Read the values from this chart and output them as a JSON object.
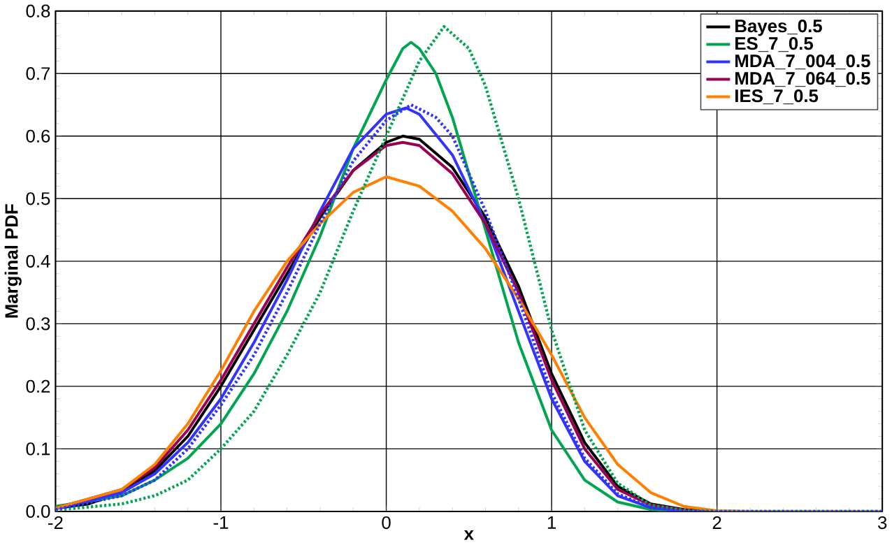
{
  "chart_data": {
    "type": "line",
    "xlabel": "x",
    "ylabel": "Marginal PDF",
    "xlim": [
      -2,
      3
    ],
    "ylim": [
      0,
      0.8
    ],
    "xticks": [
      -2,
      -1,
      0,
      1,
      2,
      3
    ],
    "yticks": [
      {
        "value": 0,
        "label": "0.0"
      },
      {
        "value": 0.1,
        "label": "0.1"
      },
      {
        "value": 0.2,
        "label": "0.2"
      },
      {
        "value": 0.3,
        "label": "0.3"
      },
      {
        "value": 0.4,
        "label": "0.4"
      },
      {
        "value": 0.5,
        "label": "0.5"
      },
      {
        "value": 0.6,
        "label": "0.6"
      },
      {
        "value": 0.7,
        "label": "0.7"
      },
      {
        "value": 0.8,
        "label": "0.8"
      }
    ],
    "grid": true,
    "legend": "top right",
    "line_style": "solid",
    "series": [
      {
        "name": "Bayes_0.5",
        "color": "#000000",
        "x": [
          -2,
          -1.8,
          -1.6,
          -1.4,
          -1.2,
          -1.0,
          -0.8,
          -0.6,
          -0.4,
          -0.2,
          0,
          0.1,
          0.2,
          0.4,
          0.6,
          0.8,
          1.0,
          1.2,
          1.4,
          1.6,
          1.8,
          2,
          3
        ],
        "values": [
          0.005,
          0.012,
          0.03,
          0.065,
          0.12,
          0.2,
          0.29,
          0.38,
          0.47,
          0.545,
          0.59,
          0.6,
          0.595,
          0.55,
          0.47,
          0.36,
          0.22,
          0.11,
          0.04,
          0.012,
          0.003,
          0,
          0
        ]
      },
      {
        "name": "ES_7_0.5",
        "color": "#00a550",
        "x": [
          -2,
          -1.6,
          -1.4,
          -1.2,
          -1.0,
          -0.8,
          -0.6,
          -0.4,
          -0.2,
          0,
          0.1,
          0.15,
          0.2,
          0.3,
          0.4,
          0.6,
          0.8,
          1.0,
          1.2,
          1.4,
          1.6,
          1.8,
          3
        ],
        "values": [
          0.008,
          0.025,
          0.05,
          0.085,
          0.14,
          0.22,
          0.32,
          0.44,
          0.58,
          0.69,
          0.74,
          0.75,
          0.74,
          0.7,
          0.63,
          0.45,
          0.27,
          0.13,
          0.05,
          0.015,
          0.003,
          0,
          0
        ]
      },
      {
        "name": "MDA_7_004_0.5",
        "color": "#3333ff",
        "x": [
          -2,
          -1.6,
          -1.4,
          -1.2,
          -1.0,
          -0.8,
          -0.6,
          -0.4,
          -0.2,
          0,
          0.12,
          0.2,
          0.4,
          0.6,
          0.8,
          1.0,
          1.2,
          1.4,
          1.6,
          1.8,
          3
        ],
        "values": [
          0.004,
          0.03,
          0.06,
          0.11,
          0.18,
          0.27,
          0.37,
          0.48,
          0.58,
          0.635,
          0.645,
          0.635,
          0.57,
          0.46,
          0.32,
          0.18,
          0.08,
          0.025,
          0.006,
          0,
          0
        ]
      },
      {
        "name": "MDA_7_064_0.5",
        "color": "#990055",
        "x": [
          -2,
          -1.6,
          -1.4,
          -1.2,
          -1.0,
          -0.8,
          -0.6,
          -0.4,
          -0.2,
          0,
          0.1,
          0.2,
          0.4,
          0.6,
          0.8,
          1.0,
          1.2,
          1.4,
          1.6,
          1.8,
          2,
          3
        ],
        "values": [
          0.005,
          0.035,
          0.07,
          0.13,
          0.21,
          0.3,
          0.39,
          0.475,
          0.545,
          0.585,
          0.59,
          0.585,
          0.54,
          0.46,
          0.35,
          0.21,
          0.1,
          0.035,
          0.01,
          0.002,
          0,
          0
        ]
      },
      {
        "name": "IES_7_0.5",
        "color": "#ff8000",
        "x": [
          -2,
          -1.6,
          -1.4,
          -1.2,
          -1.0,
          -0.8,
          -0.6,
          -0.4,
          -0.2,
          0,
          0.2,
          0.4,
          0.6,
          0.8,
          1.0,
          1.2,
          1.4,
          1.6,
          1.8,
          2,
          2.2,
          3
        ],
        "values": [
          0.005,
          0.035,
          0.075,
          0.14,
          0.225,
          0.32,
          0.4,
          0.46,
          0.51,
          0.535,
          0.52,
          0.48,
          0.42,
          0.34,
          0.25,
          0.15,
          0.075,
          0.03,
          0.008,
          0.001,
          0,
          0
        ]
      },
      {
        "color": "#00a550",
        "line_style": "dotted",
        "x": [
          -2,
          -1.6,
          -1.4,
          -1.2,
          -1.0,
          -0.8,
          -0.6,
          -0.4,
          -0.2,
          0,
          0.2,
          0.35,
          0.5,
          0.6,
          0.8,
          1.0,
          1.2,
          1.4,
          1.6,
          1.8,
          2,
          3
        ],
        "values": [
          0.002,
          0.012,
          0.025,
          0.05,
          0.1,
          0.16,
          0.25,
          0.35,
          0.48,
          0.6,
          0.72,
          0.775,
          0.74,
          0.68,
          0.5,
          0.29,
          0.13,
          0.045,
          0.01,
          0.002,
          0,
          0
        ]
      },
      {
        "color": "#3333ff",
        "line_style": "dotted",
        "x": [
          -2,
          -1.6,
          -1.4,
          -1.2,
          -1.0,
          -0.8,
          -0.6,
          -0.4,
          -0.2,
          0,
          0.15,
          0.3,
          0.4,
          0.6,
          0.8,
          1.0,
          1.2,
          1.4,
          1.6,
          1.8,
          3
        ],
        "values": [
          0.003,
          0.025,
          0.05,
          0.1,
          0.17,
          0.25,
          0.35,
          0.46,
          0.56,
          0.625,
          0.65,
          0.63,
          0.6,
          0.48,
          0.34,
          0.19,
          0.085,
          0.028,
          0.006,
          0,
          0
        ]
      }
    ]
  }
}
